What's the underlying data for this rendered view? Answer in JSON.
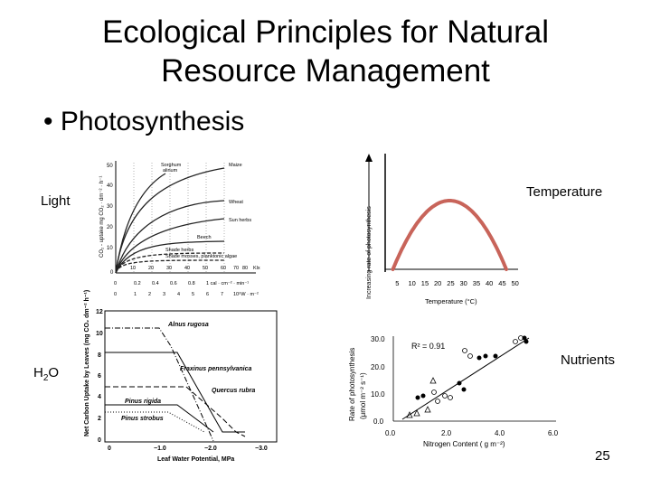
{
  "slide": {
    "title_line1": "Ecological Principles for Natural",
    "title_line2": "Resource Management",
    "bullet": "Photosynthesis",
    "page_number": "25"
  },
  "labels": {
    "light": "Light",
    "temperature": "Temperature",
    "water_prefix": "H",
    "water_sub": "2",
    "water_suffix": "O",
    "nutrients": "Nutrients"
  },
  "light_chart": {
    "y_axis_label": "CO₂ - uptake mg CO₂ · dm⁻² · h⁻¹",
    "y_ticks": [
      "50",
      "40",
      "30",
      "20",
      "10",
      "0"
    ],
    "x_unit_1": "Klx",
    "x_ticks_1": [
      "10",
      "20",
      "30",
      "40",
      "50",
      "60",
      "70",
      "80"
    ],
    "x_ticks_2": [
      "0.2",
      "0.4",
      "0.6",
      "0.8",
      "1 cal · cm⁻² · min⁻¹"
    ],
    "x_ticks_3": [
      "1",
      "2",
      "3",
      "4",
      "5",
      "6",
      "7",
      "10⁵W · m⁻²"
    ],
    "curve_labels": [
      "Sorghum",
      "Maize",
      "Wheat",
      "Sun herbs",
      "Beech",
      "Shade herbs",
      "Shade mosses, planktonic algae"
    ],
    "curve_label_extra": "alinum"
  },
  "temp_chart": {
    "y_axis_label": "Increasing rate of photosynthesis",
    "x_axis_label": "Temperature (°C)",
    "x_ticks": [
      "5",
      "10",
      "15",
      "20",
      "25",
      "30",
      "35",
      "40",
      "45",
      "50"
    ],
    "curve_color": "#c8645a",
    "chart_data": {
      "type": "line",
      "x": [
        3,
        10,
        20,
        25,
        30,
        40,
        47
      ],
      "y": [
        0,
        0.78,
        0.98,
        1.0,
        0.98,
        0.78,
        0
      ]
    }
  },
  "water_chart": {
    "y_axis_label": "Net Carbon Uptake by Leaves (mg CO₂ dm⁻² h⁻¹)",
    "x_axis_label": "Leaf Water Potential, MPa",
    "y_ticks": [
      "12",
      "10",
      "8",
      "6",
      "4",
      "2",
      "0"
    ],
    "x_ticks": [
      "0",
      "−1.0",
      "−2.0",
      "−3.0"
    ],
    "species": [
      "Alnus rugosa",
      "Fraxinus pennsylvanica",
      "Quercus rubra",
      "Pinus rigida",
      "Pinus strobus"
    ]
  },
  "nutrient_chart": {
    "y_axis_label": "Rate of photosynthesis",
    "y_axis_unit": "(μmol m⁻² s⁻¹)",
    "x_axis_label": "Nitrogen Content ( g m⁻²)",
    "r2": "R² = 0.91",
    "y_ticks": [
      "30.0",
      "20.0",
      "10.0",
      "0.0"
    ],
    "x_ticks": [
      "0.0",
      "2.0",
      "4.0",
      "6.0"
    ]
  }
}
